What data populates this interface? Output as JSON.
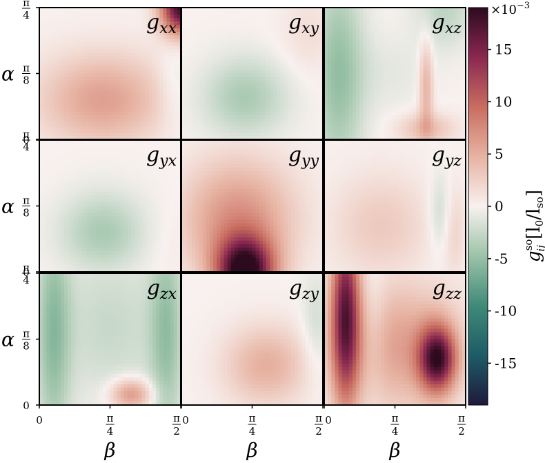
{
  "chart_data": {
    "type": "heatmap",
    "layout": "3x3 grid of panels",
    "x_axis": {
      "label": "β",
      "range": [
        0,
        1.5708
      ],
      "ticks": [
        {
          "value": 0,
          "label": "0"
        },
        {
          "value": 0.7854,
          "num": "π",
          "den": "4"
        },
        {
          "value": 1.5708,
          "num": "π",
          "den": "2"
        }
      ]
    },
    "y_axis": {
      "label": "α",
      "range": [
        0,
        0.7854
      ],
      "ticks": [
        {
          "value": 0,
          "label": "0"
        },
        {
          "value": 0.3927,
          "num": "π",
          "den": "8"
        },
        {
          "value": 0.7854,
          "num": "π",
          "den": "4"
        }
      ]
    },
    "panels": [
      {
        "label_main": "g",
        "label_sub": "xx"
      },
      {
        "label_main": "g",
        "label_sub": "xy"
      },
      {
        "label_main": "g",
        "label_sub": "xz"
      },
      {
        "label_main": "g",
        "label_sub": "yx"
      },
      {
        "label_main": "g",
        "label_sub": "yy"
      },
      {
        "label_main": "g",
        "label_sub": "yz"
      },
      {
        "label_main": "g",
        "label_sub": "zx"
      },
      {
        "label_main": "g",
        "label_sub": "zy"
      },
      {
        "label_main": "g",
        "label_sub": "zz"
      }
    ],
    "colorbar": {
      "range": [
        -19,
        19
      ],
      "exponent_label": "×10",
      "exponent_sup": "−3",
      "ticks": [
        {
          "value": 15,
          "label": "15"
        },
        {
          "value": 10,
          "label": "10"
        },
        {
          "value": 5,
          "label": "5"
        },
        {
          "value": 0,
          "label": "0"
        },
        {
          "value": -5,
          "label": "-5"
        },
        {
          "value": -10,
          "label": "-10"
        },
        {
          "value": -15,
          "label": "-15"
        }
      ],
      "label_main": "g",
      "label_sup": "so",
      "label_sub": "ij",
      "label_units": "[l",
      "label_units_sub0": "0",
      "label_units_mid": "/l",
      "label_units_sub1": "so",
      "label_units_end": "]",
      "colors": [
        "#1e1a3c",
        "#1e5c66",
        "#3f8a78",
        "#9cc3a8",
        "#f8f1ef",
        "#e7b3a2",
        "#c96d60",
        "#8a2850",
        "#2d0a1f"
      ]
    }
  }
}
